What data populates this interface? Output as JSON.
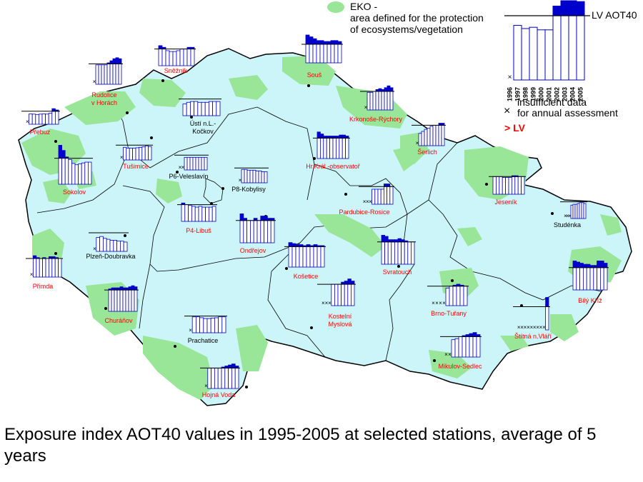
{
  "colors": {
    "region_fill": "#ccf5f9",
    "eko_fill": "#99e699",
    "bar_below": "#ffffff",
    "bar_above": "#0000cc",
    "station_below_label": "#000000",
    "station_above_label": "#ff0000"
  },
  "legend": {
    "eko_title": "EKO -",
    "eko_line1": "area defined for the protection",
    "eko_line2": "of ecosystems/vegetation",
    "lv_label": "LV  AOT40",
    "years": [
      "1996",
      "1997",
      "1998",
      "1999",
      "2000",
      "2001",
      "2002",
      "2003",
      "2004",
      "2005"
    ],
    "example_values": [
      0.0,
      0.85,
      0.8,
      0.82,
      0.78,
      0.78,
      1.15,
      1.35,
      1.27,
      1.22
    ],
    "insufficient_line1": "insufficient data",
    "insufficient_line2": "for annual assessment",
    "gt_lv": "> LV",
    "insufficient_marker": "×"
  },
  "caption": "Exposure index AOT40 values in 1995-2005 at selected stations, average of 5 years",
  "stations": [
    {
      "name": "Přebuz",
      "over": true,
      "values": [
        0,
        0.8,
        0.78,
        0.75,
        0.78,
        0.8,
        0.78,
        0.85,
        1.2,
        1.1
      ]
    },
    {
      "name": "Rudolice\nv Horách",
      "over": true,
      "values": [
        0,
        0.95,
        0.95,
        0.95,
        0.95,
        1.05,
        1.15,
        1.25,
        1.3,
        1.25
      ]
    },
    {
      "name": "Sněžník",
      "over": true,
      "values": [
        1.2,
        1.1,
        0.9,
        0.85,
        0.85,
        0.9,
        1.0,
        1.0,
        1.1,
        1.1
      ]
    },
    {
      "name": "Souš",
      "over": true,
      "values": [
        1.5,
        1.4,
        1.3,
        1.2,
        1.2,
        1.15,
        1.15,
        1.2,
        1.2,
        1.15
      ]
    },
    {
      "name": "Ústí n.L.-\nKočkov",
      "over": false,
      "values": [
        0.7,
        0.8,
        0.85,
        0.85,
        0.8,
        0.8,
        0.8,
        0.85,
        0.85,
        0.85
      ]
    },
    {
      "name": "Krkonoše-Rýchory",
      "over": true,
      "values": [
        0,
        0.95,
        0.95,
        1.0,
        1.1,
        1.15,
        1.1,
        1.2,
        1.3,
        1.2
      ]
    },
    {
      "name": "Šerlich",
      "over": true,
      "values": [
        0,
        0.6,
        0.7,
        0.8,
        0.85,
        0.95,
        1.0,
        1.0,
        1.1,
        1.1
      ]
    },
    {
      "name": "Tušimice",
      "over": true,
      "values": [
        0,
        0.85,
        0.8,
        0.8,
        0.8,
        0.82,
        0.85,
        0.88,
        0.95,
        0.9
      ]
    },
    {
      "name": "Sokolov",
      "over": true,
      "values": [
        1.5,
        1.3,
        1.05,
        0.95,
        0.8,
        0.75,
        0.78,
        0.82,
        0.85,
        0.85
      ]
    },
    {
      "name": "P6-Veleslavín",
      "over": false,
      "values": [
        0,
        0,
        0.85,
        0.85,
        0.85,
        0.85,
        0.85,
        0.85,
        0.85,
        0.85
      ]
    },
    {
      "name": "P8-Kobylisy",
      "over": false,
      "values": [
        0,
        0.9,
        0.9,
        0.85,
        0.85,
        0.85,
        0.8,
        0.8,
        0.75,
        0.75
      ]
    },
    {
      "name": "Hr.Král.-observatoř",
      "over": true,
      "values": [
        1.3,
        1.2,
        1.1,
        1.1,
        1.1,
        1.1,
        1.1,
        1.15,
        1.15,
        1.1
      ]
    },
    {
      "name": "Pardubice-Rosice",
      "over": true,
      "values": [
        0,
        0,
        0,
        0.85,
        0.85,
        0.85,
        0.85,
        1.15,
        1.15,
        1.0
      ]
    },
    {
      "name": "Jeseník",
      "over": true,
      "values": [
        1.0,
        1.0,
        1.0,
        0.95,
        0.95,
        0.95,
        1.05,
        1.05,
        1.0,
        1.0
      ]
    },
    {
      "name": "Studénka",
      "over": false,
      "values": [
        0,
        0,
        0,
        0.8,
        0.85,
        0.85,
        0.9,
        0.95,
        0.95,
        0.9
      ]
    },
    {
      "name": "P4-Libuš",
      "over": true,
      "values": [
        1.1,
        1.0,
        0.95,
        0.9,
        0.85,
        0.9,
        0.85,
        0.85,
        0.85,
        0.9
      ]
    },
    {
      "name": "Plzeň-Doubravka",
      "over": false,
      "values": [
        0,
        0.75,
        0.8,
        0.7,
        0.65,
        0.6,
        0.6,
        0.55,
        0.55,
        0.5
      ]
    },
    {
      "name": "Ondřejov",
      "over": true,
      "values": [
        1.3,
        1.1,
        1.0,
        1.0,
        1.1,
        1.0,
        1.2,
        1.2,
        1.1,
        1.1
      ]
    },
    {
      "name": "Přimda",
      "over": true,
      "values": [
        0,
        1.15,
        1.05,
        1.0,
        1.05,
        1.0,
        1.1,
        1.1,
        1.05,
        1.0
      ]
    },
    {
      "name": "Košetice",
      "over": true,
      "values": [
        1.2,
        1.15,
        1.1,
        1.1,
        1.05,
        1.1,
        1.05,
        1.1,
        1.05,
        1.05
      ]
    },
    {
      "name": "Svratouch",
      "over": true,
      "values": [
        1.3,
        1.25,
        1.1,
        1.1,
        1.1,
        1.15,
        1.1,
        1.05,
        1.0,
        1.0
      ]
    },
    {
      "name": "Bílý Kříž",
      "over": true,
      "values": [
        1.3,
        1.25,
        1.2,
        1.15,
        1.15,
        1.1,
        1.1,
        1.3,
        1.3,
        1.2
      ]
    },
    {
      "name": "Churáňov",
      "over": true,
      "values": [
        1.05,
        1.1,
        1.1,
        1.1,
        1.15,
        1.1,
        1.1,
        1.15,
        1.2,
        1.15
      ]
    },
    {
      "name": "Kostelní\nMyslová",
      "over": true,
      "values": [
        0,
        0,
        0,
        1.0,
        1.0,
        1.0,
        1.1,
        1.15,
        1.25,
        1.15
      ]
    },
    {
      "name": "Brno-Tuřany",
      "over": true,
      "values": [
        0,
        0,
        0,
        0,
        0.9,
        1.0,
        1.05,
        1.1,
        1.05,
        1.0
      ]
    },
    {
      "name": "Štítná n.Vláří",
      "over": true,
      "values": [
        0,
        0,
        0,
        0,
        0,
        0,
        0,
        0,
        0,
        1.4
      ]
    },
    {
      "name": "Prachatice",
      "over": false,
      "values": [
        0,
        0.95,
        0.95,
        0.9,
        0.85,
        0.85,
        0.88,
        0.9,
        0.95,
        0.95
      ]
    },
    {
      "name": "Mikulov-Sedlec",
      "over": true,
      "values": [
        0,
        0,
        0.85,
        0.9,
        1.0,
        1.05,
        1.1,
        1.15,
        1.2,
        1.1
      ]
    },
    {
      "name": "Hojná Voda",
      "over": true,
      "values": [
        0,
        1.0,
        1.0,
        1.0,
        1.0,
        1.05,
        1.1,
        1.15,
        1.2,
        1.1
      ]
    }
  ]
}
